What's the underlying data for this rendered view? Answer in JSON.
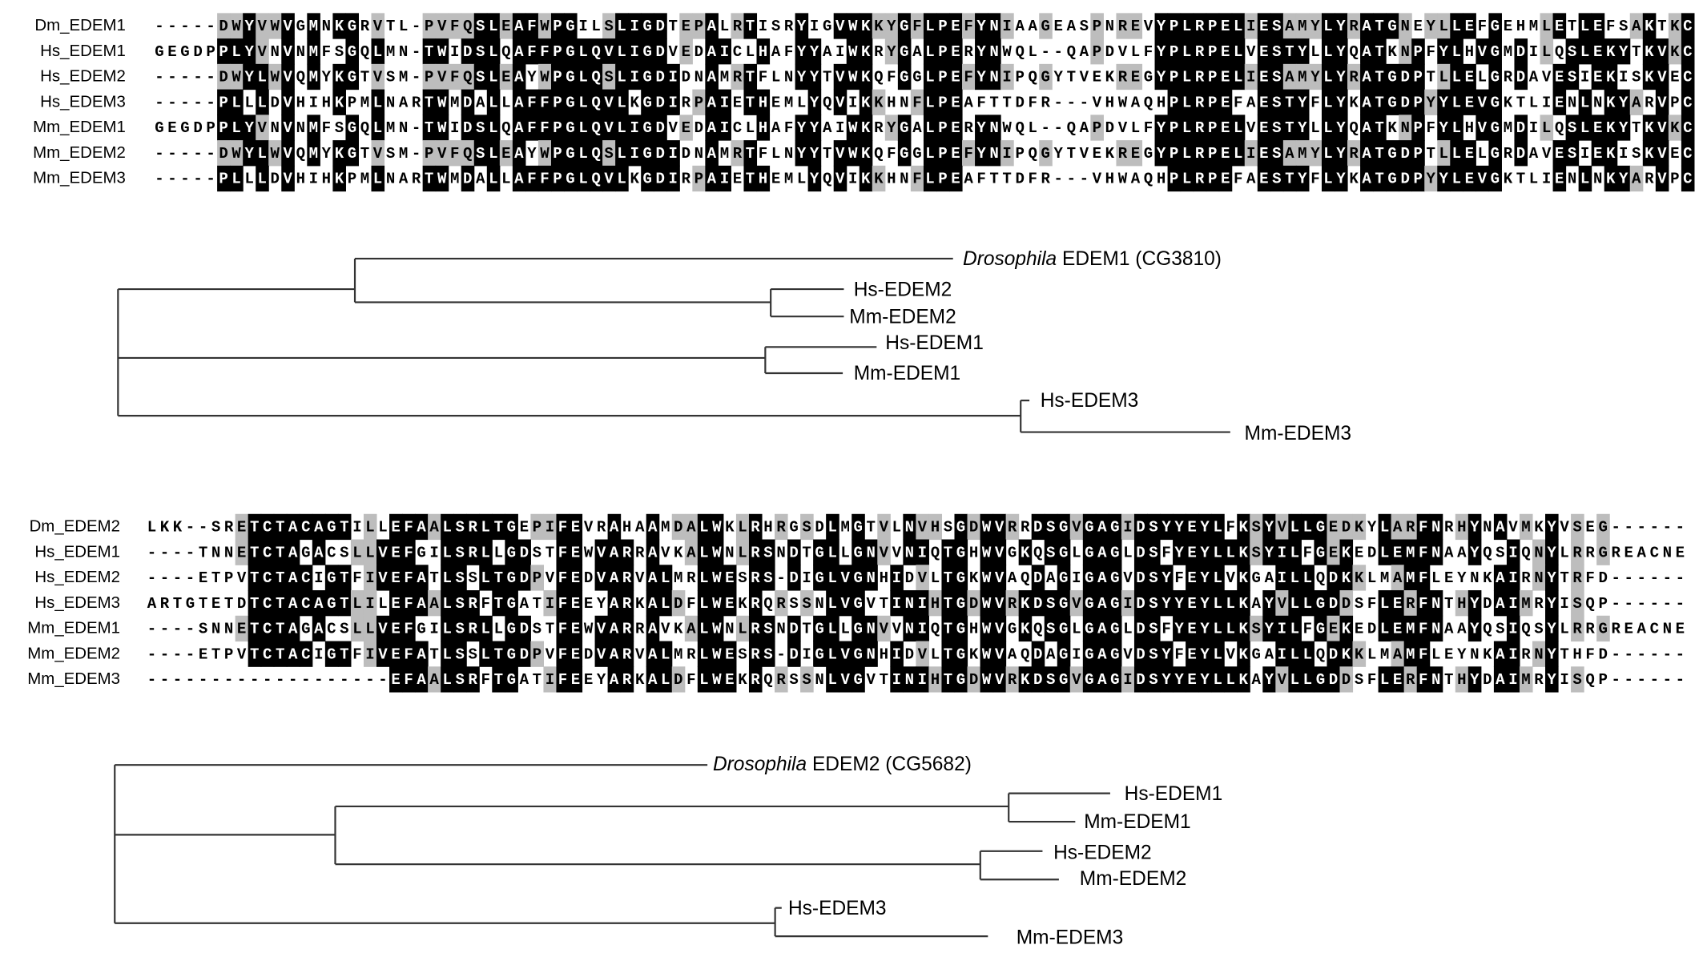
{
  "alignments": [
    {
      "rows": [
        {
          "label": "Dm_EDEM1",
          "seq": "-----DWYVWVGMNKGRVTL-PVFQSLEAFWPGILSLIGDTEPALRTISRYIGVWKKYGFLPEFYNIAAGEASPNREVYPLRPELIESAMYLYRATGNEYLLEFGEHMLETLEFSAKTKC"
        },
        {
          "label": "Hs_EDEM1",
          "seq": "GEGDPPLYVNVNMFSGQLMN-TWIDSLQAFFPGLQVLIGDVEDAICLHAFYYAIWKRYGALPERYNWQL--QAPDVLFYPLRPELVESTYLLYQATKNPFYLHVGMDILQSLEKYTKVKC"
        },
        {
          "label": "Hs_EDEM2",
          "seq": "-----DWYLWVQMYKGTVSM-PVFQSLEAYWPGLQSLIGDIDNAMRTFLNYYTVWKQFGGLPEFYNIPQGYTVEKREGYPLRPELIESAMYLYRATGDPTLLELGRDAVESIEKISKVEC"
        },
        {
          "label": "Hs_EDEM3",
          "seq": "-----PLLLDVHIHKPMLNARTWMDALLAFFPGLQVLKGDIRPAIETHEMLYQVIKKHNFLPEAFTTDFR---VHWAQHPLRPEFAESTYFLYKATGDPYYLEVGKTLIENLNKYARVPC"
        },
        {
          "label": "Mm_EDEM1",
          "seq": "GEGDPPLYVNVNMFSGQLMN-TWIDSLQAFFPGLQVLIGDVEDAICLHAFYYAIWKRYGALPERYNWQL--QAPDVLFYPLRPELVESTYLLYQATKNPFYLHVGMDILQSLEKYTKVKC"
        },
        {
          "label": "Mm_EDEM2",
          "seq": "-----DWYLWVQMYKGTVSM-PVFQSLEAYWPGLQSLIGDIDNAMRTFLNYYTVWKQFGGLPEFYNIPQGYTVEKREGYPLRPELIESAMYLYRATGDPTLLELGRDAVESIEKISKVEC"
        },
        {
          "label": "Mm_EDEM3",
          "seq": "-----PLLLDVHIHKPMLNARTWMDALLAFFPGLQVLKGDIRPAIETHEMLYQVIKKHNFLPEAFTTDFR---VHWAQHPLRPEFAESTYFLYKATGDPYYLEVGKTLIENLNKYARVPC"
        }
      ]
    },
    {
      "rows": [
        {
          "label": "Dm_EDEM2",
          "seq": "LKK--SRETCTACAGTILLEFAALSRLTGEPIFEVRAHAAMDALWKLRHRGSDLMGTVLNVHSGDWVRRDSGVGAGIDSYYEYLFKSYVLLGEDKYLARFNRHYNAVMKYVSEG------"
        },
        {
          "label": "Hs_EDEM1",
          "seq": "----TNNETCTAGACSLLVEFGILSRLLGDSTFEWVARRAVKALWNLRSNDTGLLGNVVNIQTGHWVGKQSGLGAGLDSFYEYLLKSYILFGEKEDLEMFNAAYQSIQNYLRRGREACNE"
        },
        {
          "label": "Hs_EDEM2",
          "seq": "----ETPVTCTACIGTFIVEFATLSSLTGDPVFEDVARVALMRLWESRS-DIGLVGNHIDVLTGKWVAQDAGIGAGVDSYFEYLVKGAILLQDKKLMAMFLEYNKAIRNYTRFD------"
        },
        {
          "label": "Hs_EDEM3",
          "seq": "ARTGTETDTCTACAGTLILEFAALSRFTGATIFEEYARKALDFLWEKRQRSSNLVGVTINIHTGDWVRKDSGVGAGIDSYYEYLLKAYVLLGDDSFLERFNTHYDAIMRYISQP------"
        },
        {
          "label": "Mm_EDEM1",
          "seq": "----SNNETCTAGACSLLVEFGILSRLLGDSTFEWVARRAVKALWNLRSNDTGLLGNVVNIQTGHWVGKQSGLGAGLDSFYEYLLKSYILFGEKEDLEMFNAAYQSIQSYLRRGREACNE"
        },
        {
          "label": "Mm_EDEM2",
          "seq": "----ETPVTCTACIGTFIVEFATLSSLTGDPVFEDVARVALMRLWESRS-DIGLVGNHIDVLTGKWVAQDAGIGAGVDSYFEYLVKGAILLQDKKLMAMFLEYNKAIRNYTHFD------"
        },
        {
          "label": "Mm_EDEM3",
          "seq": "-------------------EFAALSRFTGATIFEEYARKALDFLWEKRQRSSNLVGVTINIHTGDWVRKDSGVGAGIDSYYEYLLKAYVLLGDDSFLERFNTHYDAIMRYISQP------"
        }
      ]
    }
  ],
  "trees": [
    {
      "outgroup": {
        "italic": "Drosophila",
        "rest": " EDEM1 (CG3810)"
      },
      "leaves": [
        "Hs-EDEM2",
        "Mm-EDEM2",
        "Hs-EDEM1",
        "Mm-EDEM1",
        "Hs-EDEM3",
        "Mm-EDEM3"
      ]
    },
    {
      "outgroup": {
        "italic": "Drosophila",
        "rest": " EDEM2 (CG5682)"
      },
      "leaves": [
        "Hs-EDEM1",
        "Mm-EDEM1",
        "Hs-EDEM2",
        "Mm-EDEM2",
        "Hs-EDEM3",
        "Mm-EDEM3"
      ]
    }
  ],
  "colors": {
    "identical": "#000000",
    "similar": "#bdbdbd",
    "text": "#000000",
    "branch": "#333333"
  }
}
